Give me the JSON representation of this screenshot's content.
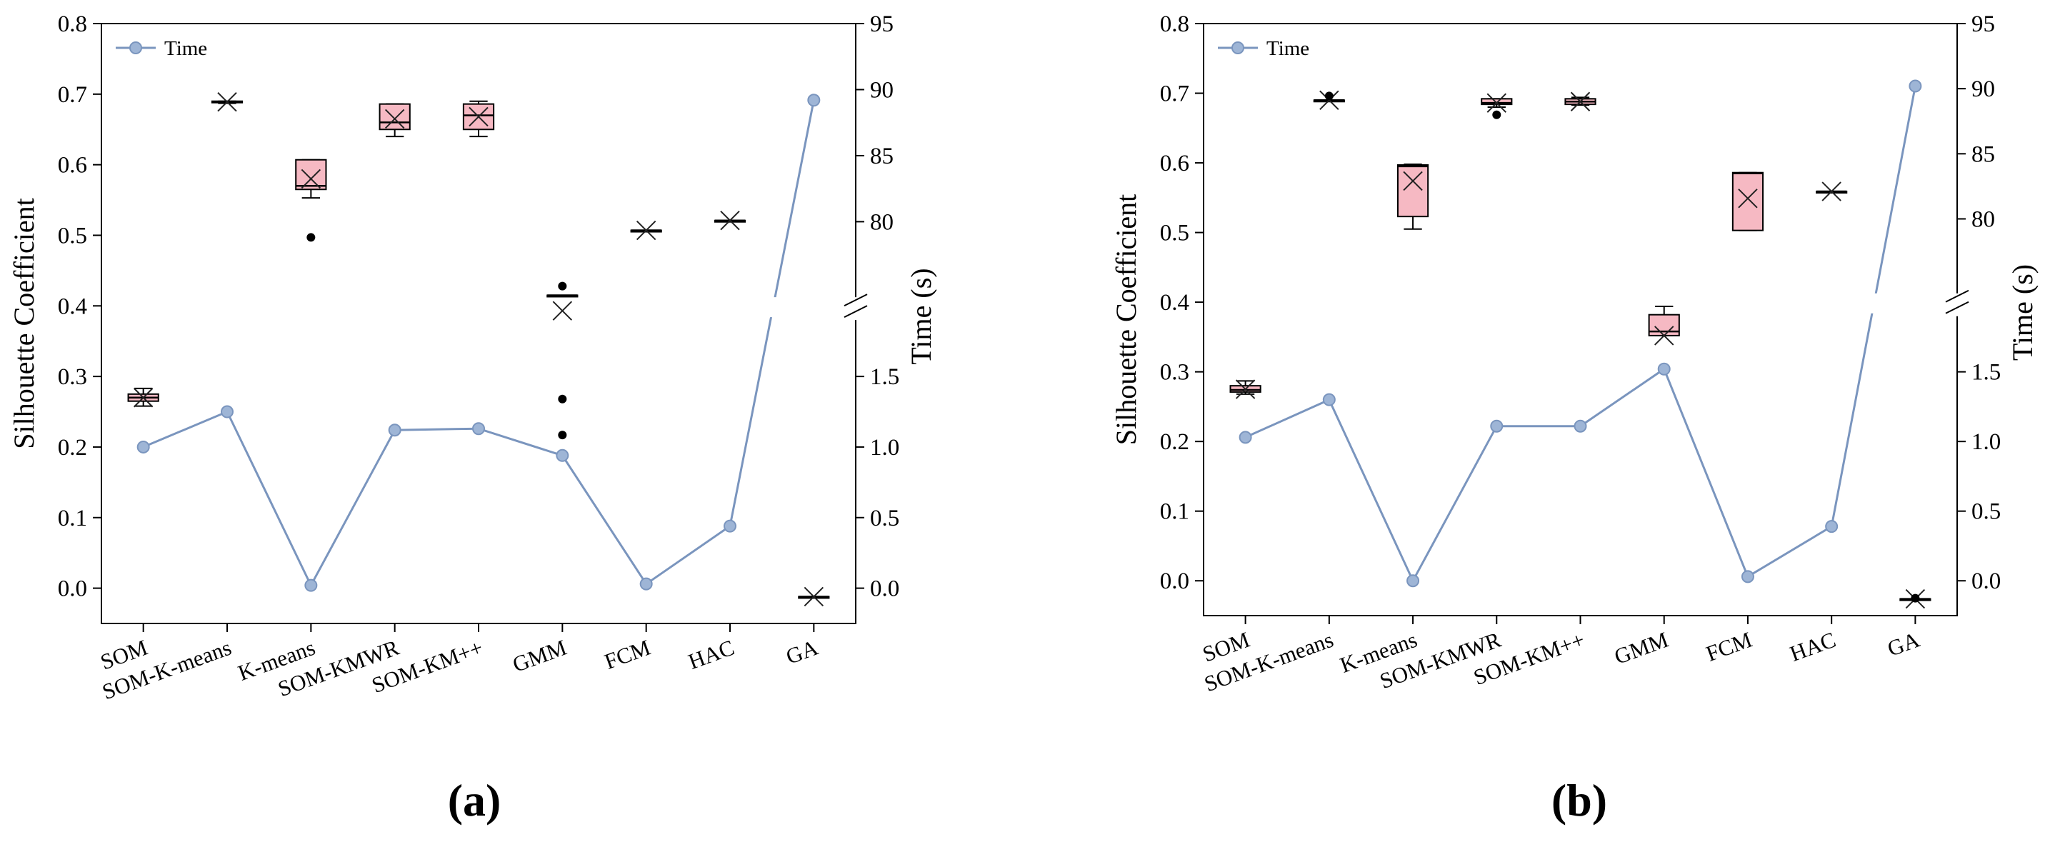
{
  "chart_data": [
    {
      "type": "box+line",
      "panel_label": "(a)",
      "categories": [
        "SOM",
        "SOM-K-means",
        "K-means",
        "SOM-KMWR",
        "SOM-KM++",
        "GMM",
        "FCM",
        "HAC",
        "GA"
      ],
      "ylabel": "Silhouette Coefficient",
      "ylabel2": "Time (s)",
      "legend": {
        "label": "Time",
        "position": "top-left"
      },
      "ylim": [
        -0.05,
        0.8
      ],
      "yticks": [
        "0.0",
        "0.1",
        "0.2",
        "0.3",
        "0.4",
        "0.5",
        "0.6",
        "0.7",
        "0.8"
      ],
      "y2_lower_ticks": [
        "0.0",
        "0.5",
        "1.0",
        "1.5"
      ],
      "y2_upper_ticks": [
        "80",
        "85",
        "90",
        "95"
      ],
      "silhouette_boxes": [
        {
          "category": "SOM",
          "min": 0.258,
          "q1": 0.265,
          "median": 0.27,
          "q3": 0.275,
          "max": 0.283,
          "mean": 0.27,
          "outliers": []
        },
        {
          "category": "SOM-K-means",
          "min": 0.687,
          "q1": 0.688,
          "median": 0.689,
          "q3": 0.69,
          "max": 0.69,
          "mean": 0.689,
          "outliers": []
        },
        {
          "category": "K-means",
          "min": 0.553,
          "q1": 0.565,
          "median": 0.57,
          "q3": 0.607,
          "max": 0.607,
          "mean": 0.58,
          "outliers": [
            0.497
          ]
        },
        {
          "category": "SOM-KMWR",
          "min": 0.64,
          "q1": 0.65,
          "median": 0.66,
          "q3": 0.686,
          "max": 0.686,
          "mean": 0.665,
          "outliers": []
        },
        {
          "category": "SOM-KM++",
          "min": 0.64,
          "q1": 0.65,
          "median": 0.67,
          "q3": 0.686,
          "max": 0.69,
          "mean": 0.668,
          "outliers": []
        },
        {
          "category": "GMM",
          "min": 0.415,
          "q1": 0.415,
          "median": 0.415,
          "q3": 0.415,
          "max": 0.415,
          "mean": 0.393,
          "outliers": [
            0.428,
            0.268,
            0.217
          ]
        },
        {
          "category": "FCM",
          "min": 0.507,
          "q1": 0.507,
          "median": 0.507,
          "q3": 0.507,
          "max": 0.507,
          "mean": 0.507,
          "outliers": []
        },
        {
          "category": "HAC",
          "min": 0.521,
          "q1": 0.521,
          "median": 0.521,
          "q3": 0.521,
          "max": 0.521,
          "mean": 0.521,
          "outliers": []
        },
        {
          "category": "GA",
          "min": -0.012,
          "q1": -0.012,
          "median": -0.012,
          "q3": -0.012,
          "max": -0.012,
          "mean": -0.012,
          "outliers": []
        }
      ],
      "time_series": {
        "name": "Time",
        "unit": "s",
        "values": [
          1.0,
          1.25,
          0.02,
          1.12,
          1.13,
          0.94,
          0.03,
          0.44,
          89.2
        ]
      }
    },
    {
      "type": "box+line",
      "panel_label": "(b)",
      "categories": [
        "SOM",
        "SOM-K-means",
        "K-means",
        "SOM-KMWR",
        "SOM-KM++",
        "GMM",
        "FCM",
        "HAC",
        "GA"
      ],
      "ylabel": "Silhouette Coefficient",
      "ylabel2": "Time (s)",
      "legend": {
        "label": "Time",
        "position": "top-left"
      },
      "ylim": [
        -0.05,
        0.8
      ],
      "yticks": [
        "0.0",
        "0.1",
        "0.2",
        "0.3",
        "0.4",
        "0.5",
        "0.6",
        "0.7",
        "0.8"
      ],
      "y2_lower_ticks": [
        "0.0",
        "0.5",
        "1.0",
        "1.5"
      ],
      "y2_upper_ticks": [
        "80",
        "85",
        "90",
        "95"
      ],
      "silhouette_boxes": [
        {
          "category": "SOM",
          "min": 0.268,
          "q1": 0.271,
          "median": 0.274,
          "q3": 0.28,
          "max": 0.287,
          "mean": 0.275,
          "outliers": []
        },
        {
          "category": "SOM-K-means",
          "min": 0.689,
          "q1": 0.689,
          "median": 0.69,
          "q3": 0.69,
          "max": 0.69,
          "mean": 0.69,
          "outliers": [
            0.696
          ]
        },
        {
          "category": "K-means",
          "min": 0.505,
          "q1": 0.523,
          "median": 0.595,
          "q3": 0.597,
          "max": 0.598,
          "mean": 0.574,
          "outliers": []
        },
        {
          "category": "SOM-KMWR",
          "min": 0.68,
          "q1": 0.684,
          "median": 0.686,
          "q3": 0.692,
          "max": 0.692,
          "mean": 0.686,
          "outliers": [
            0.669
          ]
        },
        {
          "category": "SOM-KM++",
          "min": 0.683,
          "q1": 0.684,
          "median": 0.688,
          "q3": 0.692,
          "max": 0.694,
          "mean": 0.688,
          "outliers": []
        },
        {
          "category": "GMM",
          "min": 0.352,
          "q1": 0.352,
          "median": 0.358,
          "q3": 0.382,
          "max": 0.394,
          "mean": 0.352,
          "outliers": []
        },
        {
          "category": "FCM",
          "min": 0.503,
          "q1": 0.503,
          "median": 0.585,
          "q3": 0.586,
          "max": 0.586,
          "mean": 0.549,
          "outliers": []
        },
        {
          "category": "HAC",
          "min": 0.559,
          "q1": 0.559,
          "median": 0.559,
          "q3": 0.559,
          "max": 0.559,
          "mean": 0.559,
          "outliers": []
        },
        {
          "category": "GA",
          "min": -0.026,
          "q1": -0.026,
          "median": -0.026,
          "q3": -0.026,
          "max": -0.026,
          "mean": -0.026,
          "outliers": [
            -0.025
          ]
        }
      ],
      "time_series": {
        "name": "Time",
        "unit": "s",
        "values": [
          1.03,
          1.3,
          0.0,
          1.11,
          1.11,
          1.52,
          0.03,
          0.39,
          90.2
        ]
      }
    }
  ],
  "colors": {
    "box_fill": "#f6b9c3",
    "time_line": "#7a95be",
    "time_marker": "#9eb5d6"
  }
}
